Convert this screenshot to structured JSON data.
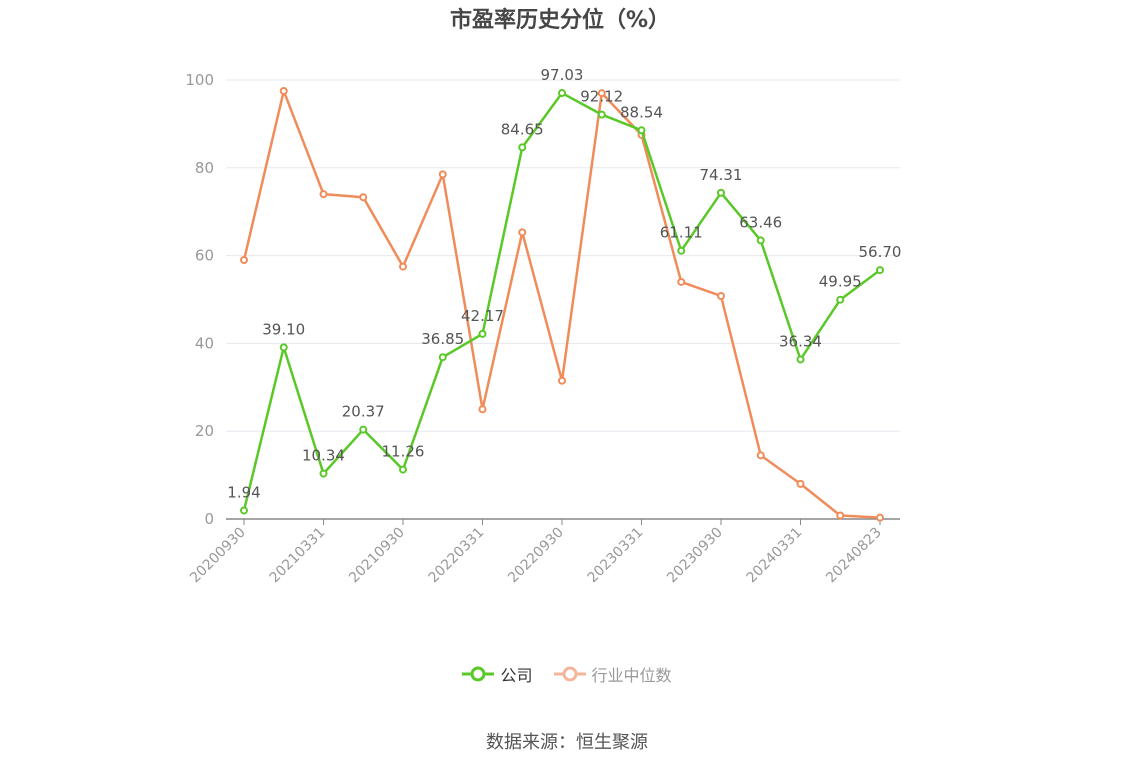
{
  "chart_data": {
    "type": "line",
    "title": "市盈率历史分位（%）",
    "x_ticks": [
      "20200930",
      "20210331",
      "20210930",
      "20220331",
      "20220930",
      "20230331",
      "20230930",
      "20240331",
      "20240823"
    ],
    "x": [
      "20200930",
      "20201231",
      "20210331",
      "20210630",
      "20210930",
      "20211231",
      "20220331",
      "20220630",
      "20220930",
      "20221231",
      "20230331",
      "20230630",
      "20230930",
      "20231231",
      "20240331",
      "20240630",
      "20240823"
    ],
    "ylim": [
      0,
      100
    ],
    "y_ticks": [
      0,
      20,
      40,
      60,
      80,
      100
    ],
    "grid": true,
    "legend_position": "bottom",
    "series": [
      {
        "name": "公司",
        "color": "#5ac828",
        "values": [
          1.94,
          39.1,
          10.34,
          20.37,
          11.26,
          36.85,
          42.17,
          84.65,
          97.03,
          92.12,
          88.54,
          61.11,
          74.31,
          63.46,
          36.34,
          49.95,
          56.7
        ],
        "labels": [
          "1.94",
          "39.10",
          "10.34",
          "20.37",
          "11.26",
          "36.85",
          "42.17",
          "84.65",
          "97.03",
          "92.12",
          "88.54",
          "61.11",
          "74.31",
          "63.46",
          "36.34",
          "49.95",
          "56.70"
        ]
      },
      {
        "name": "行业中位数",
        "color": "#f08c5a",
        "values": [
          59.0,
          97.5,
          74.0,
          73.3,
          57.5,
          78.5,
          25.0,
          65.3,
          31.5,
          97.0,
          87.5,
          54.0,
          50.8,
          14.5,
          8.0,
          0.8,
          0.3
        ]
      }
    ]
  },
  "legend": {
    "items": [
      {
        "label": "公司",
        "color": "#5ac828",
        "state": "active"
      },
      {
        "label": "行业中位数",
        "color": "#f5b59a",
        "state": "inactive"
      }
    ]
  },
  "source": "数据来源：恒生聚源"
}
